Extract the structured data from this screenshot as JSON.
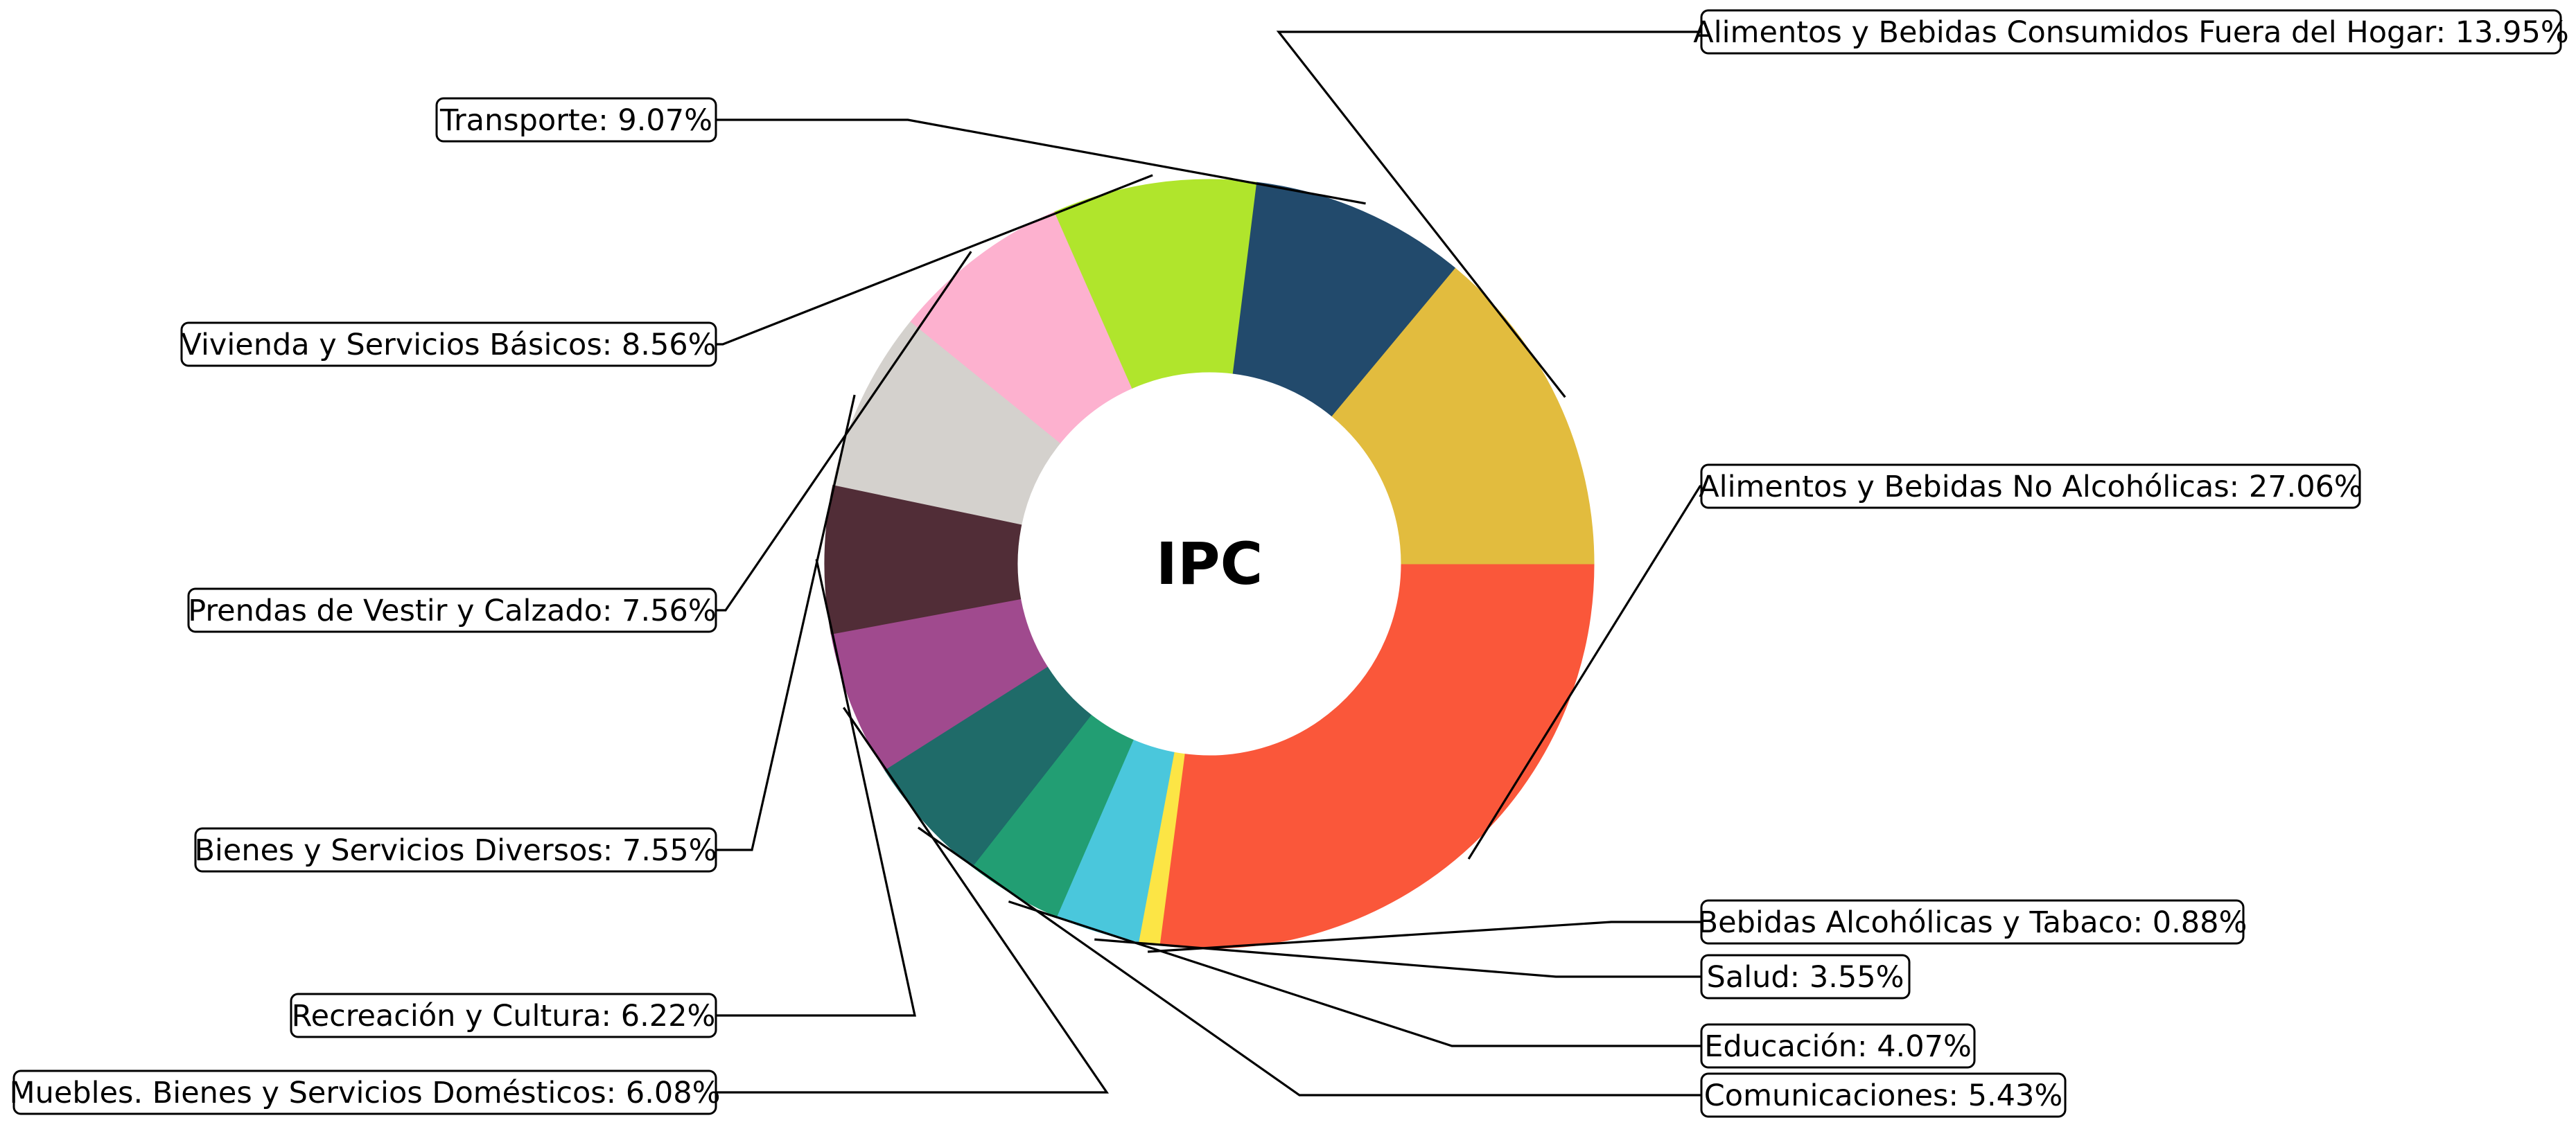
{
  "chart_data": {
    "type": "pie",
    "style": "donut",
    "title": "IPC",
    "start_angle_deg": 0,
    "direction": "clockwise",
    "slices": [
      {
        "label": "Alimentos y Bebidas No Alcohólicas",
        "value": 27.06,
        "display": "Alimentos y Bebidas No Alcohólicas: 27.06%",
        "color": "#FA573A"
      },
      {
        "label": "Bebidas Alcohólicas y Tabaco",
        "value": 0.88,
        "display": "Bebidas Alcohólicas y Tabaco: 0.88%",
        "color": "#FCE545"
      },
      {
        "label": "Salud",
        "value": 3.55,
        "display": "Salud: 3.55%",
        "color": "#4AC7DC"
      },
      {
        "label": "Educación",
        "value": 4.07,
        "display": "Educación: 4.07%",
        "color": "#229E73"
      },
      {
        "label": "Comunicaciones",
        "value": 5.43,
        "display": "Comunicaciones: 5.43%",
        "color": "#1F6B69"
      },
      {
        "label": "Muebles. Bienes y Servicios Domésticos",
        "value": 6.08,
        "display": "Muebles. Bienes y Servicios Domésticos: 6.08%",
        "color": "#A04A8E"
      },
      {
        "label": "Recreación y Cultura",
        "value": 6.22,
        "display": "Recreación y Cultura: 6.22%",
        "color": "#512D37"
      },
      {
        "label": "Bienes y Servicios Diversos",
        "value": 7.55,
        "display": "Bienes y Servicios Diversos: 7.55%",
        "color": "#D4D1CD"
      },
      {
        "label": "Prendas de Vestir y Calzado",
        "value": 7.56,
        "display": "Prendas de Vestir y Calzado: 7.56%",
        "color": "#FDB1CF"
      },
      {
        "label": "Vivienda y Servicios Básicos",
        "value": 8.56,
        "display": "Vivienda y Servicios Básicos: 8.56%",
        "color": "#B0E52C"
      },
      {
        "label": "Transporte",
        "value": 9.07,
        "display": "Transporte: 9.07%",
        "color": "#224A6C"
      },
      {
        "label": "Alimentos y Bebidas Consumidos Fuera del Hogar",
        "value": 13.95,
        "display": "Alimentos y Bebidas Consumidos Fuera del Hogar: 13.95%",
        "color": "#E2BC3E"
      }
    ]
  }
}
